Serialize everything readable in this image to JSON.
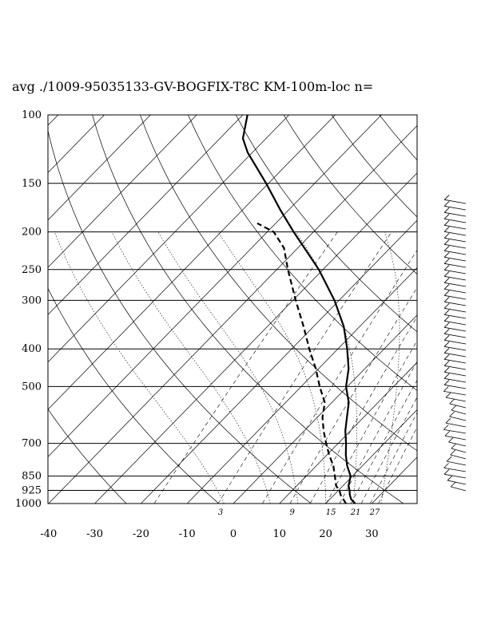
{
  "chart_data": {
    "type": "line",
    "chart_kind": "skew-T log-P sounding",
    "title": "avg ./1009-95035133-GV-BOGFIX-T8C KM-100m-loc n=",
    "xlabel": "",
    "ylabel": "",
    "x_ticks": [
      "-40",
      "-30",
      "-20",
      "-10",
      "0",
      "10",
      "20",
      "30"
    ],
    "xlim": [
      -40,
      40
    ],
    "y_scale": "log",
    "y_ticks": [
      "100",
      "150",
      "200",
      "250",
      "300",
      "400",
      "500",
      "700",
      "850",
      "925",
      "1000"
    ],
    "ylim": [
      1000,
      100
    ],
    "mixing_ratio_labels": [
      "3",
      "9",
      "15",
      "21",
      "27"
    ],
    "grid": true,
    "series": [
      {
        "style": "solid",
        "color": "#000000",
        "points": [
          {
            "p": 1000,
            "t": 26.4
          },
          {
            "p": 975,
            "t": 24.6
          },
          {
            "p": 950,
            "t": 23.4
          },
          {
            "p": 925,
            "t": 22.4
          },
          {
            "p": 900,
            "t": 21.2
          },
          {
            "p": 850,
            "t": 19.6
          },
          {
            "p": 800,
            "t": 16.7
          },
          {
            "p": 750,
            "t": 14.1
          },
          {
            "p": 700,
            "t": 11.7
          },
          {
            "p": 650,
            "t": 8.9
          },
          {
            "p": 600,
            "t": 6.4
          },
          {
            "p": 550,
            "t": 3.7
          },
          {
            "p": 500,
            "t": -0.3
          },
          {
            "p": 450,
            "t": -3.5
          },
          {
            "p": 400,
            "t": -8.0
          },
          {
            "p": 350,
            "t": -13.5
          },
          {
            "p": 300,
            "t": -21.0
          },
          {
            "p": 250,
            "t": -30.9
          },
          {
            "p": 200,
            "t": -44.3
          },
          {
            "p": 175,
            "t": -52.0
          },
          {
            "p": 150,
            "t": -60.5
          },
          {
            "p": 125,
            "t": -71.0
          },
          {
            "p": 115,
            "t": -75.0
          },
          {
            "p": 100,
            "t": -79.0
          }
        ]
      },
      {
        "style": "dashed",
        "color": "#000000",
        "points": [
          {
            "p": 1000,
            "td": 24.4
          },
          {
            "p": 975,
            "td": 22.9
          },
          {
            "p": 950,
            "td": 21.4
          },
          {
            "p": 925,
            "td": 20.2
          },
          {
            "p": 900,
            "td": 18.5
          },
          {
            "p": 850,
            "td": 16.2
          },
          {
            "p": 800,
            "td": 13.7
          },
          {
            "p": 750,
            "td": 10.5
          },
          {
            "p": 700,
            "td": 7.4
          },
          {
            "p": 650,
            "td": 4.2
          },
          {
            "p": 600,
            "td": 1.1
          },
          {
            "p": 550,
            "td": -1.5
          },
          {
            "p": 500,
            "td": -6.0
          },
          {
            "p": 450,
            "td": -10.6
          },
          {
            "p": 400,
            "td": -16.2
          },
          {
            "p": 350,
            "td": -22.2
          },
          {
            "p": 300,
            "td": -29.4
          },
          {
            "p": 250,
            "td": -37.6
          },
          {
            "p": 220,
            "td": -43.0
          },
          {
            "p": 200,
            "td": -48.6
          },
          {
            "p": 190,
            "td": -54.0
          }
        ]
      }
    ],
    "wind_barbs": "shown to the right of the diagram (values not labeled)"
  }
}
